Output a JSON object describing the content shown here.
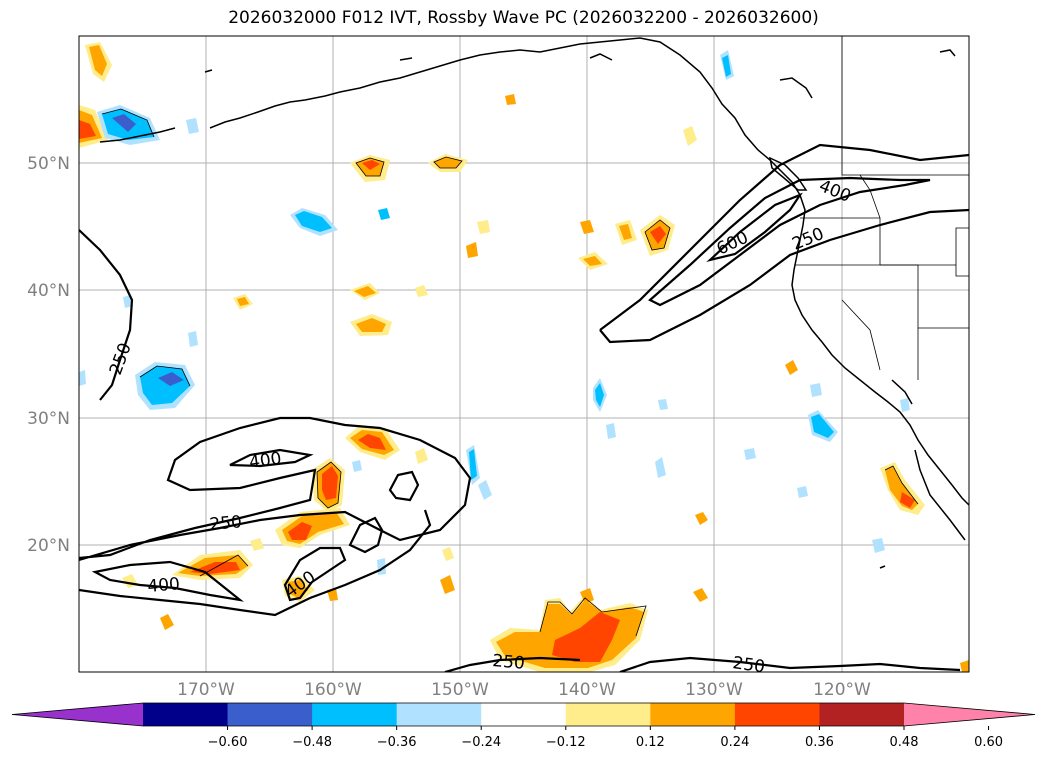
{
  "title": "2026032000 F012 IVT, Rossby Wave PC (2026032200 - 2026032600)",
  "lat_labels": [
    "50°N",
    "40°N",
    "30°N",
    "20°N"
  ],
  "lon_labels": [
    "170°W",
    "160°W",
    "150°W",
    "140°W",
    "130°W",
    "120°W"
  ],
  "contour_labels": [
    "400",
    "600",
    "250",
    "250",
    "400",
    "250",
    "400",
    "400",
    "250",
    "250"
  ],
  "colorbar": {
    "ticks": [
      "−0.60",
      "−0.48",
      "−0.36",
      "−0.24",
      "−0.12",
      "0.12",
      "0.24",
      "0.36",
      "0.48",
      "0.60"
    ],
    "colors": [
      "#9932cc",
      "#00008b",
      "#3a5fcd",
      "#00bfff",
      "#b0e2ff",
      "#ffffff",
      "#ffec8b",
      "#ffa500",
      "#ff4500",
      "#b22222",
      "#ff82ab"
    ]
  }
}
